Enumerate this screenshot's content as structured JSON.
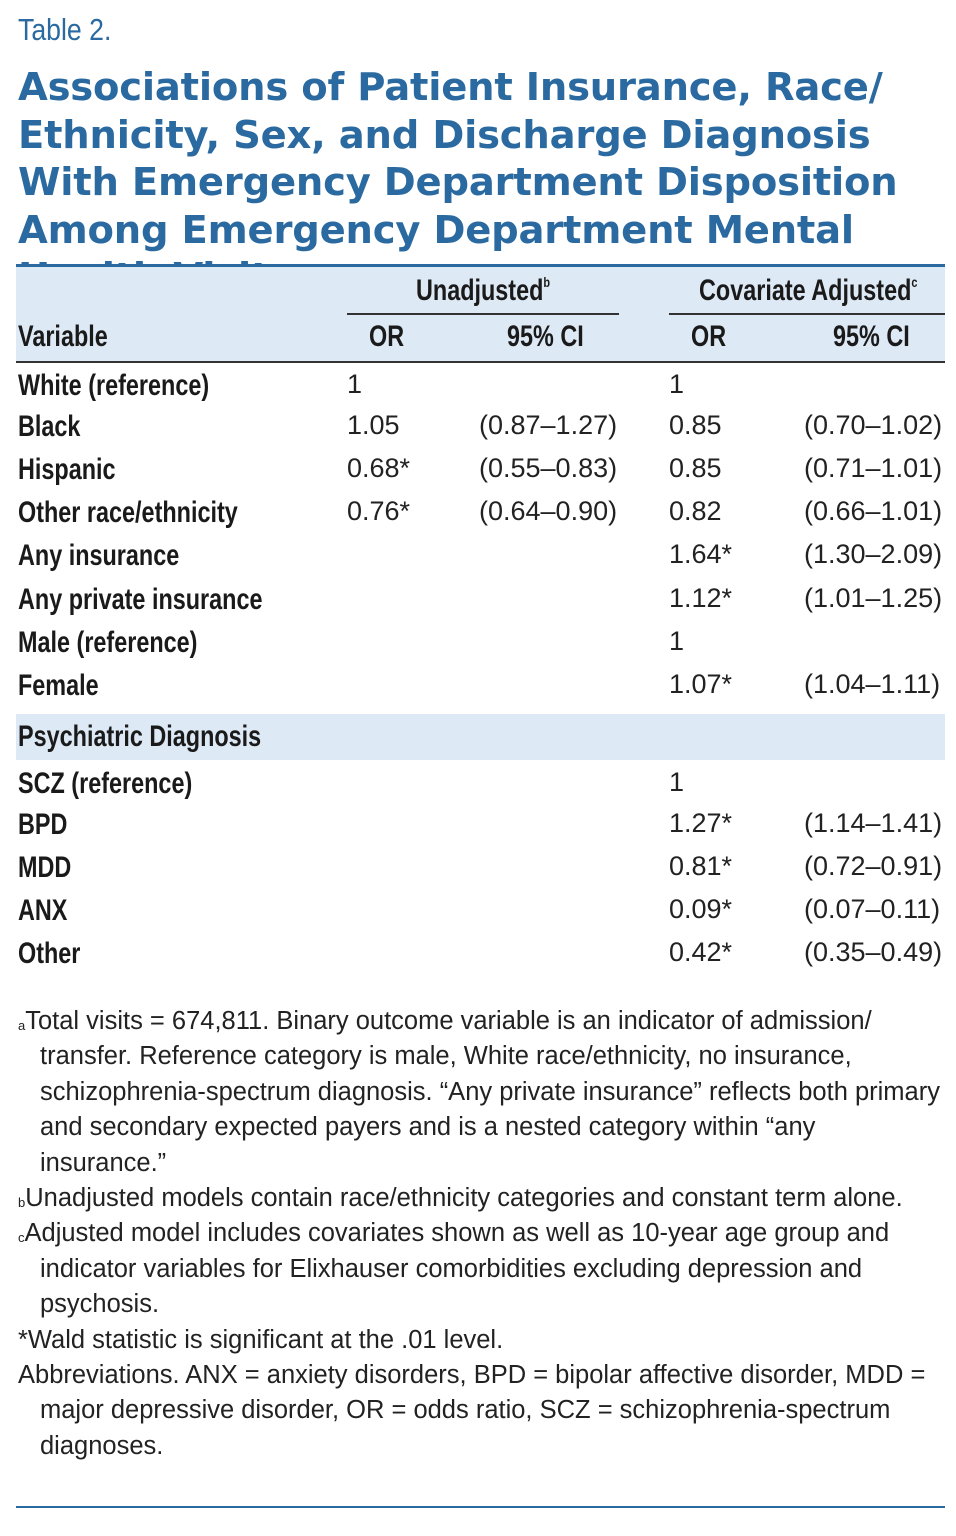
{
  "table_label": "Table 2.",
  "title": "Associations of Patient Insurance, Race/ Ethnicity, Sex, and Discharge Diagnosis With Emergency Department Disposition Among Emergency Department Mental Health Visits",
  "title_footnote": "a",
  "header": {
    "unadjusted": "Unadjusted",
    "unadjusted_sup": "b",
    "adjusted": "Covariate Adjusted",
    "adjusted_sup": "c",
    "variable": "Variable",
    "or1": "OR",
    "ci1": "95% CI",
    "or2": "OR",
    "ci2": "95% CI"
  },
  "rows": [
    {
      "label": "White (reference)",
      "or1": "1",
      "ci1": "",
      "or2": "1",
      "ci2": ""
    },
    {
      "label": "Black",
      "or1": "1.05",
      "ci1": "(0.87–1.27)",
      "or2": "0.85",
      "ci2": "(0.70–1.02)"
    },
    {
      "label": "Hispanic",
      "or1": "0.68*",
      "ci1": "(0.55–0.83)",
      "or2": "0.85",
      "ci2": "(0.71–1.01)"
    },
    {
      "label": "Other race/ethnicity",
      "or1": "0.76*",
      "ci1": "(0.64–0.90)",
      "or2": "0.82",
      "ci2": "(0.66–1.01)"
    },
    {
      "label": "Any insurance",
      "or1": "",
      "ci1": "",
      "or2": "1.64*",
      "ci2": "(1.30–2.09)"
    },
    {
      "label": "Any private insurance",
      "or1": "",
      "ci1": "",
      "or2": "1.12*",
      "ci2": "(1.01–1.25)"
    },
    {
      "label": "Male (reference)",
      "or1": "",
      "ci1": "",
      "or2": "1",
      "ci2": ""
    },
    {
      "label": "Female",
      "or1": "",
      "ci1": "",
      "or2": "1.07*",
      "ci2": "(1.04–1.11)"
    }
  ],
  "section_label": "Psychiatric Diagnosis",
  "section_rows": [
    {
      "label": "SCZ (reference)",
      "or2": "1",
      "ci2": ""
    },
    {
      "label": "BPD",
      "or2": "1.27*",
      "ci2": "(1.14–1.41)"
    },
    {
      "label": "MDD",
      "or2": "0.81*",
      "ci2": "(0.72–0.91)"
    },
    {
      "label": "ANX",
      "or2": "0.09*",
      "ci2": "(0.07–0.11)"
    },
    {
      "label": "Other",
      "or2": "0.42*",
      "ci2": "(0.35–0.49)"
    }
  ],
  "notes": [
    {
      "mark": "a",
      "text": "Total visits = 674,811. Binary outcome variable is an indicator of admission/ transfer. Reference category is male, White race/ethnicity, no insurance, schizophrenia-spectrum diagnosis. “Any private insurance” reflects both primary and secondary expected payers and is a nested category within “any insurance.”"
    },
    {
      "mark": "b",
      "text": "Unadjusted models contain race/ethnicity categories and constant term alone."
    },
    {
      "mark": "c",
      "text": "Adjusted model includes covariates shown as well as 10-year age group and indicator variables for Elixhauser comorbidities excluding depression and psychosis."
    },
    {
      "mark": "",
      "text": "*Wald statistic is significant at the .01 level."
    },
    {
      "mark": "",
      "text": "Abbreviations. ANX = anxiety disorders, BPD = bipolar affective disorder, MDD = major depressive disorder, OR = odds ratio, SCZ = schizophrenia-spectrum diagnoses."
    }
  ]
}
